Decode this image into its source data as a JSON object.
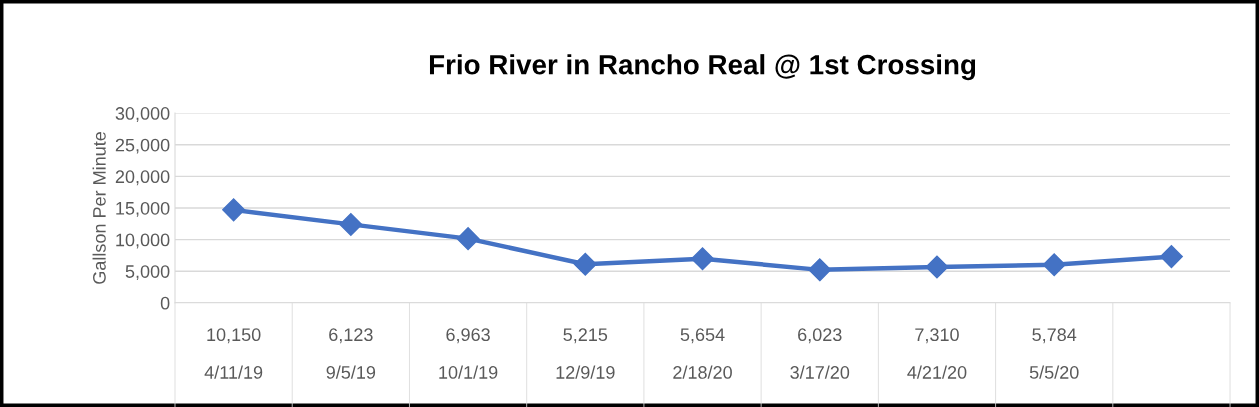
{
  "chart_data": {
    "type": "line",
    "title": "Frio River in Rancho Real @ 1st Crossing",
    "ylabel": "Gallson Per Minute",
    "categories": [
      "10,150\n4/11/19",
      "6,123\n9/5/19",
      "6,963\n10/1/19",
      "5,215\n12/9/19",
      "5,654\n2/18/20",
      "6,023\n3/17/20",
      "7,310\n4/21/20",
      "5,784\n5/5/20",
      null
    ],
    "series": [
      {
        "color": "#4472c4",
        "values": [
          14700,
          12400,
          10150,
          6100,
          6963,
          5215,
          5654,
          6023,
          7310
        ]
      }
    ],
    "ylim": [
      0,
      30000
    ],
    "yticks": [
      0,
      {
        "value": 5000,
        "label": "5,000"
      },
      {
        "value": 10000,
        "label": "10,000"
      },
      {
        "value": 15000,
        "label": "15,000"
      },
      {
        "value": 20000,
        "label": "20,000"
      },
      {
        "value": 25000,
        "label": "25,000"
      },
      {
        "value": 30000,
        "label": "30,000"
      }
    ],
    "grid": "y",
    "marker": "diamond",
    "line_style": "solid",
    "legend": false
  }
}
